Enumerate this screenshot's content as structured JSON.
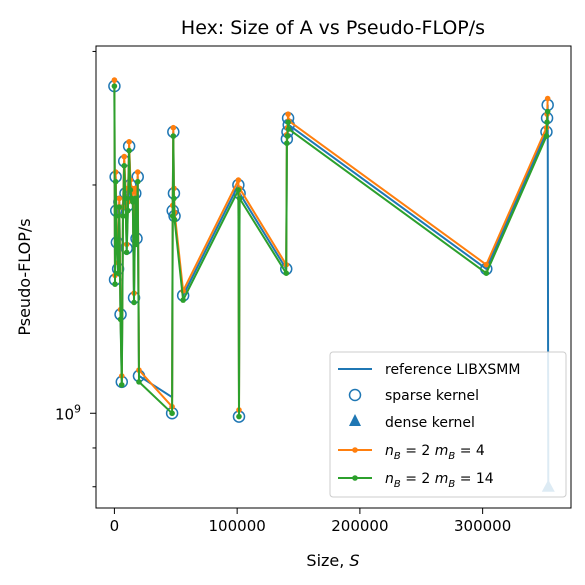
{
  "chart_data": {
    "type": "line",
    "title": "Hex: Size of A vs Pseudo-FLOP/s",
    "xlabel_prefix": "Size, ",
    "xlabel_var": "S",
    "ylabel": "Pseudo-FLOP/s",
    "x_scale": "linear",
    "y_scale": "log",
    "xlim": [
      -15000,
      372000
    ],
    "ylim": [
      750000000,
      3050000000
    ],
    "x_ticks": [
      0,
      100000,
      200000,
      300000
    ],
    "x_tick_labels": [
      "0",
      "100000",
      "200000",
      "300000"
    ],
    "y_major_ticks": [
      1000000000
    ],
    "y_major_tick_label": {
      "base": "10",
      "exp": "9"
    },
    "y_minor_ticks": [
      800000000,
      900000000,
      2000000000,
      3000000000
    ],
    "legend_position": "lower-right",
    "series": [
      {
        "name": "reference LIBXSMM",
        "style": "line",
        "color": "#1f77b4",
        "x": [
          0,
          500,
          1000,
          1500,
          2000,
          3000,
          4000,
          5000,
          6000,
          7000,
          8000,
          9000,
          10000,
          11000,
          12000,
          13000,
          14000,
          15000,
          16000,
          17000,
          18000,
          19000,
          20000,
          47000,
          47500,
          48000,
          48500,
          49000,
          56000,
          101000,
          101500,
          102000,
          140000,
          140500,
          141000,
          141500,
          142000,
          303000,
          352000,
          352500,
          353000,
          353500
        ],
        "y": [
          2700000000,
          1500000000,
          2050000000,
          1850000000,
          1680000000,
          1550000000,
          1900000000,
          1350000000,
          1100000000,
          1850000000,
          2150000000,
          1950000000,
          1650000000,
          1880000000,
          2250000000,
          2000000000,
          1950000000,
          1930000000,
          1420000000,
          1950000000,
          1700000000,
          2050000000,
          1120000000,
          1050000000,
          1850000000,
          2350000000,
          1950000000,
          1820000000,
          1430000000,
          2000000000,
          1050000000,
          1950000000,
          1550000000,
          2300000000,
          2350000000,
          2450000000,
          2400000000,
          1550000000,
          2350000000,
          2450000000,
          2550000000,
          800000000
        ]
      },
      {
        "name": "sparse kernel",
        "style": "hollow-circle",
        "color": "#1f77b4",
        "x": [
          0,
          500,
          1000,
          1500,
          2000,
          3000,
          4000,
          5000,
          6000,
          7000,
          8000,
          9000,
          10000,
          11000,
          12000,
          13000,
          14000,
          15000,
          16000,
          17000,
          18000,
          19000,
          20000,
          47000,
          47500,
          48000,
          48500,
          49000,
          56000,
          101000,
          101500,
          102000,
          140000,
          140500,
          141000,
          141500,
          142000,
          303000,
          352000,
          352500,
          353000
        ],
        "y": [
          2700000000,
          1500000000,
          2050000000,
          1850000000,
          1680000000,
          1550000000,
          1900000000,
          1350000000,
          1100000000,
          1850000000,
          2150000000,
          1950000000,
          1650000000,
          1880000000,
          2250000000,
          2000000000,
          1950000000,
          1930000000,
          1420000000,
          1950000000,
          1700000000,
          2050000000,
          1120000000,
          1000000000,
          1850000000,
          2350000000,
          1950000000,
          1820000000,
          1430000000,
          2000000000,
          990000000,
          1950000000,
          1550000000,
          2300000000,
          2350000000,
          2450000000,
          2400000000,
          1550000000,
          2350000000,
          2450000000,
          2550000000
        ]
      },
      {
        "name": "dense kernel",
        "style": "triangle",
        "color": "#1f77b4",
        "x": [
          353500
        ],
        "y": [
          800000000
        ]
      },
      {
        "name_base": "n",
        "name_sub1": "B",
        "name_mid": " = 2 ",
        "name_base2": "m",
        "name_sub2": "B",
        "name_end": " = 4",
        "style": "line-dot",
        "color": "#ff7f0e",
        "x": [
          0,
          500,
          1000,
          1500,
          2000,
          3000,
          4000,
          5000,
          6000,
          7000,
          8000,
          9000,
          10000,
          11000,
          12000,
          13000,
          14000,
          15000,
          16000,
          17000,
          18000,
          19000,
          20000,
          47000,
          47500,
          48000,
          48500,
          49000,
          56000,
          101000,
          101500,
          102000,
          140000,
          140500,
          141000,
          141500,
          142000,
          303000,
          352000,
          352500,
          353000
        ],
        "y": [
          2750000000,
          1520000000,
          2080000000,
          1870000000,
          1700000000,
          1580000000,
          1920000000,
          1370000000,
          1120000000,
          1870000000,
          2180000000,
          1980000000,
          1670000000,
          1900000000,
          2280000000,
          2030000000,
          1980000000,
          1960000000,
          1440000000,
          1980000000,
          1720000000,
          2080000000,
          1140000000,
          1020000000,
          1880000000,
          2380000000,
          1980000000,
          1840000000,
          1450000000,
          2030000000,
          1010000000,
          1980000000,
          1570000000,
          2330000000,
          2380000000,
          2480000000,
          2430000000,
          1570000000,
          2380000000,
          2480000000,
          2600000000
        ]
      },
      {
        "name_base": "n",
        "name_sub1": "B",
        "name_mid": " = 2 ",
        "name_base2": "m",
        "name_sub2": "B",
        "name_end": " = 14",
        "style": "line-dot",
        "color": "#2ca02c",
        "x": [
          0,
          500,
          1000,
          1500,
          2000,
          3000,
          4000,
          5000,
          6000,
          7000,
          8000,
          9000,
          10000,
          11000,
          12000,
          13000,
          14000,
          15000,
          16000,
          17000,
          18000,
          19000,
          20000,
          47000,
          47500,
          48000,
          48500,
          49000,
          56000,
          101000,
          101500,
          102000,
          140000,
          140500,
          141000,
          141500,
          142000,
          303000,
          352000,
          352500,
          353000
        ],
        "y": [
          2700000000,
          1480000000,
          2020000000,
          1820000000,
          1650000000,
          1530000000,
          1870000000,
          1330000000,
          1090000000,
          1820000000,
          2120000000,
          1920000000,
          1630000000,
          1850000000,
          2220000000,
          1970000000,
          1920000000,
          1900000000,
          1400000000,
          1920000000,
          1670000000,
          2020000000,
          1100000000,
          1000000000,
          1820000000,
          2320000000,
          1920000000,
          1800000000,
          1410000000,
          1970000000,
          990000000,
          1920000000,
          1530000000,
          2270000000,
          2320000000,
          2420000000,
          2370000000,
          1530000000,
          2320000000,
          2420000000,
          2500000000
        ]
      }
    ]
  }
}
